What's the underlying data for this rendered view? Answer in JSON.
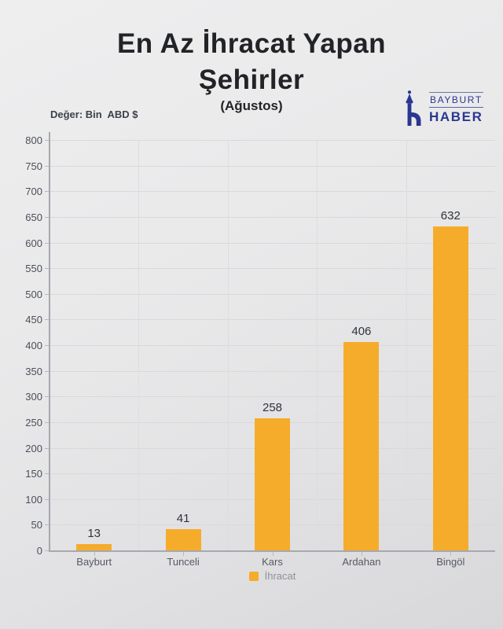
{
  "header": {
    "title_line1": "En Az İhracat Yapan",
    "title_line2": "Şehirler",
    "subtitle": "(Ağustos)"
  },
  "logo": {
    "top_text": "BAYBURT",
    "bottom_text": "HABER"
  },
  "chart_data": {
    "type": "bar",
    "title": "En Az İhracat Yapan Şehirler (Ağustos)",
    "unit_note": "Değer: Bin  ABD $",
    "categories": [
      "Bayburt",
      "Tunceli",
      "Kars",
      "Ardahan",
      "Bingöl"
    ],
    "series": [
      {
        "name": "İhracat",
        "values": [
          13,
          41,
          258,
          406,
          632
        ]
      }
    ],
    "ylim": [
      0,
      800
    ],
    "ytick_step": 50,
    "yticks": [
      0,
      50,
      100,
      150,
      200,
      250,
      300,
      350,
      400,
      450,
      500,
      550,
      600,
      650,
      700,
      750,
      800
    ],
    "grid": true,
    "legend_position": "bottom"
  },
  "colors": {
    "bar": "#F5AC2B",
    "logo_blue": "#2B3691",
    "background_top": "#EEEEEF",
    "background_bottom": "#D8D8DA",
    "grid_line": "#D8D9DB",
    "axis_line": "#A6A9AE",
    "title_text": "#222326",
    "ytick_label": "#4A4F58",
    "category_label": "#565A61",
    "value_label": "#2F333A",
    "legend_text": "#8F9296"
  }
}
